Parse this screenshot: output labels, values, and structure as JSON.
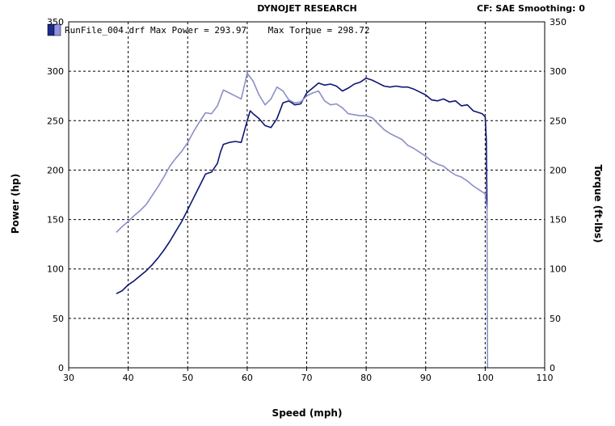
{
  "header": {
    "title": "DYNOJET RESEARCH",
    "correction": "CF: SAE  Smoothing: 0"
  },
  "legend": {
    "text": "RunFile_004.drf Max Power = 293.97    Max Torque = 298.72",
    "swatch_colors": [
      "#1e2a8c",
      "#8e94e6"
    ]
  },
  "chart_data": {
    "type": "line",
    "xlabel": "Speed (mph)",
    "ylabel": "Power (hp)",
    "y2label": "Torque (ft-lbs)",
    "xlim": [
      30,
      110
    ],
    "ylim": [
      0,
      350
    ],
    "y2lim": [
      0,
      350
    ],
    "xticks": [
      30,
      40,
      50,
      60,
      70,
      80,
      90,
      100,
      110
    ],
    "yticks": [
      0,
      50,
      100,
      150,
      200,
      250,
      300,
      350
    ],
    "grid": true,
    "series": [
      {
        "axis": "left",
        "color": "#0c1673",
        "x": [
          38,
          39,
          40,
          41,
          42,
          43,
          44,
          45,
          46,
          47,
          48,
          49,
          50,
          51,
          52,
          53,
          54,
          55,
          55.5,
          56,
          57,
          58,
          59,
          60,
          60.5,
          61,
          62,
          63,
          64,
          65,
          66,
          67,
          68,
          69,
          70,
          71,
          72,
          73,
          74,
          75,
          76,
          77,
          78,
          79,
          80,
          81,
          82,
          83,
          84,
          85,
          86,
          87,
          88,
          89,
          90,
          91,
          92,
          93,
          94,
          95,
          96,
          97,
          98,
          99,
          99.5,
          100,
          100.2,
          100.3
        ],
        "y": [
          75,
          78,
          84,
          88,
          93,
          98,
          104,
          111,
          119,
          128,
          138,
          148,
          160,
          172,
          184,
          196,
          198,
          207,
          218,
          226,
          228,
          229,
          228,
          250,
          260,
          257,
          252,
          245,
          243,
          252,
          268,
          270,
          266,
          267,
          278,
          283,
          288,
          286,
          287,
          285,
          280,
          283,
          287,
          289,
          293,
          291,
          288,
          285,
          284,
          285,
          284,
          284,
          282,
          279,
          276,
          271,
          270,
          272,
          269,
          270,
          265,
          266,
          260,
          258,
          257,
          254,
          230,
          160
        ]
      },
      {
        "axis": "right",
        "color": "#8b8fc8",
        "x": [
          38,
          39,
          40,
          41,
          42,
          43,
          44,
          45,
          46,
          47,
          48,
          49,
          50,
          51,
          52,
          53,
          54,
          55,
          56,
          57,
          58,
          59,
          60,
          61,
          62,
          63,
          64,
          65,
          66,
          67,
          68,
          69,
          70,
          71,
          72,
          73,
          74,
          75,
          76,
          77,
          78,
          79,
          80,
          81,
          82,
          83,
          84,
          85,
          86,
          87,
          88,
          89,
          90,
          91,
          92,
          93,
          94,
          95,
          96,
          97,
          98,
          99,
          100,
          100.3,
          100.4
        ],
        "y": [
          137,
          143,
          148,
          154,
          159,
          165,
          174,
          183,
          193,
          204,
          212,
          219,
          228,
          239,
          249,
          258,
          257,
          265,
          281,
          278,
          275,
          272,
          298,
          290,
          276,
          266,
          272,
          284,
          280,
          271,
          268,
          269,
          275,
          278,
          280,
          270,
          266,
          267,
          263,
          257,
          256,
          255,
          255,
          253,
          247,
          241,
          237,
          234,
          231,
          225,
          222,
          218,
          214,
          209,
          206,
          204,
          199,
          195,
          193,
          189,
          184,
          180,
          176,
          160,
          0
        ]
      }
    ]
  }
}
